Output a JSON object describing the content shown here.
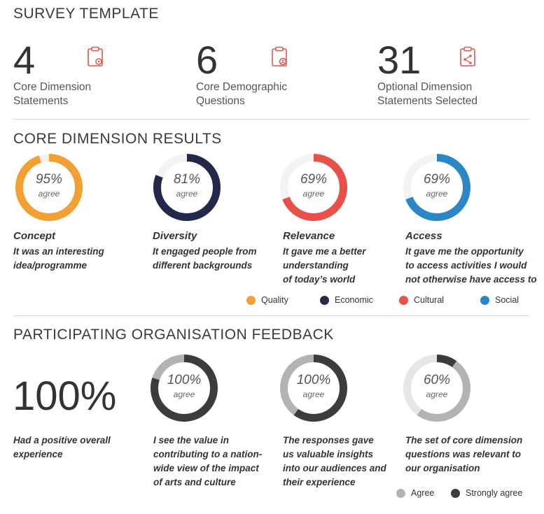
{
  "survey": {
    "title": "SURVEY TEMPLATE",
    "stats": [
      {
        "number": "4",
        "label_line1": "Core Dimension",
        "label_line2": "Statements",
        "icon": "clipboard-gear-icon"
      },
      {
        "number": "6",
        "label_line1": "Core Demographic",
        "label_line2": "Questions",
        "icon": "clipboard-person-icon"
      },
      {
        "number": "31",
        "label_line1": "Optional Dimension",
        "label_line2": "Statements Selected",
        "icon": "clipboard-share-icon"
      }
    ],
    "icon_color": "#e2574c"
  },
  "core": {
    "title": "CORE DIMENSION RESULTS",
    "agree_label": "agree",
    "items": [
      {
        "pct_text": "95%",
        "name": "Concept",
        "desc": [
          "It was an interesting",
          "idea/programme"
        ]
      },
      {
        "pct_text": "81%",
        "name": "Diversity",
        "desc": [
          "It engaged people from",
          "different backgrounds"
        ]
      },
      {
        "pct_text": "69%",
        "name": "Relevance",
        "desc": [
          "It gave me a better",
          "understanding",
          "of today’s world"
        ]
      },
      {
        "pct_text": "69%",
        "name": "Access",
        "desc": [
          "It gave me the opportunity",
          "to access activities I would",
          "not otherwise have access to"
        ]
      }
    ],
    "legend": [
      {
        "label": "Quality",
        "color": "#f29f33"
      },
      {
        "label": "Economic",
        "color": "#23294a"
      },
      {
        "label": "Cultural",
        "color": "#e8504a"
      },
      {
        "label": "Social",
        "color": "#2a86c4"
      }
    ]
  },
  "feedback": {
    "title": "PARTICIPATING ORGANISATION FEEDBACK",
    "big_number": "100%",
    "big_desc": [
      "Had a positive overall",
      "experience"
    ],
    "agree_label": "agree",
    "items": [
      {
        "pct_text": "100%",
        "desc": [
          "I see the value in",
          "contributing to a nation-",
          "wide view of the impact",
          "of arts and culture"
        ]
      },
      {
        "pct_text": "100%",
        "desc": [
          "The responses gave",
          "us valuable insights",
          "into our audiences and",
          "their experience"
        ]
      },
      {
        "pct_text": "60%",
        "desc": [
          "The set of core dimension",
          "questions was relevant to",
          "our organisation"
        ]
      }
    ],
    "legend": [
      {
        "label": "Agree",
        "color": "#b3b3b3"
      },
      {
        "label": "Strongly agree",
        "color": "#3c3c3c"
      }
    ]
  },
  "chart_data": [
    {
      "type": "pie",
      "title": "CORE DIMENSION RESULTS",
      "categories": [
        "Concept",
        "Diversity",
        "Relevance",
        "Access"
      ],
      "values": [
        95,
        81,
        69,
        69
      ],
      "unit": "% agree",
      "colors": [
        "#f29f33",
        "#23294a",
        "#e8504a",
        "#2a86c4"
      ],
      "legend": [
        "Quality",
        "Economic",
        "Cultural",
        "Social"
      ],
      "legend_position": "bottom-right"
    },
    {
      "type": "pie",
      "title": "PARTICIPATING ORGANISATION FEEDBACK",
      "categories": [
        "I see the value in contributing to a nation-wide view of the impact of arts and culture",
        "The responses gave us valuable insights into our audiences and their experience",
        "The set of core dimension questions was relevant to our organisation"
      ],
      "values": [
        100,
        100,
        60
      ],
      "series": [
        {
          "name": "Strongly agree",
          "values": [
            80,
            60,
            10
          ]
        },
        {
          "name": "Agree",
          "values": [
            20,
            40,
            50
          ]
        }
      ],
      "colors": {
        "Agree": "#b3b3b3",
        "Strongly agree": "#3c3c3c",
        "remainder": "#e6e6e6"
      },
      "legend_position": "bottom-right"
    }
  ]
}
